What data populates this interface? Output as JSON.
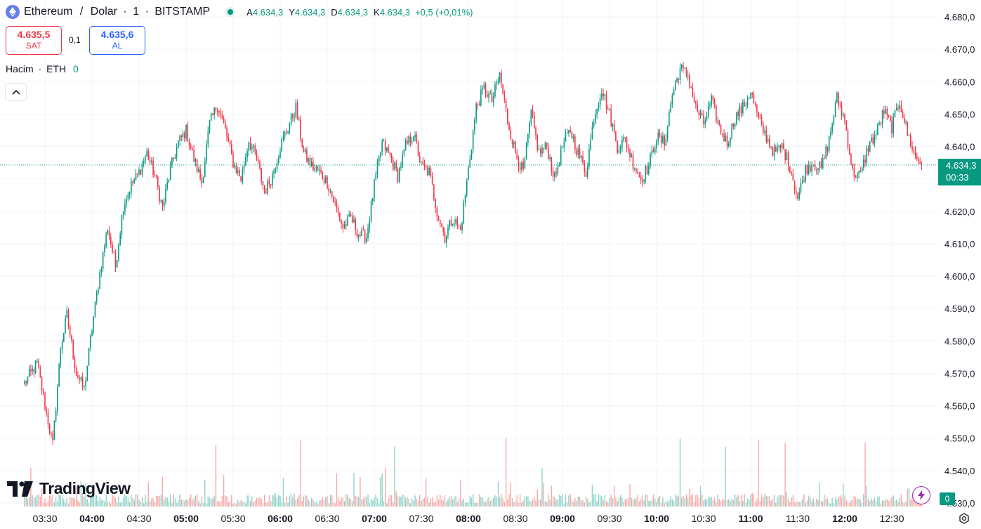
{
  "header": {
    "symbol_name": "Ethereum",
    "sep1": "/",
    "quote_name": "Dolar",
    "dot1": "·",
    "interval": "1",
    "dot2": "·",
    "exchange": "BITSTAMP",
    "ohlc": {
      "open_label": "A",
      "open": "4.634,3",
      "high_label": "Y",
      "high": "4.634,3",
      "low_label": "D",
      "low": "4.634,3",
      "close_label": "K",
      "close": "4.634,3",
      "change": "+0,5 (+0,01%)"
    }
  },
  "trade": {
    "sell_price": "4.635,5",
    "sell_label": "SAT",
    "spread": "0,1",
    "buy_price": "4.635,6",
    "buy_label": "AL"
  },
  "volume_legend": {
    "label": "Hacim",
    "dot": "·",
    "unit": "ETH",
    "value": "0"
  },
  "branding": {
    "logo_text": "TradingView"
  },
  "price_badge": {
    "price": "4.634,3",
    "countdown": "00:33"
  },
  "volume_badge": "0",
  "colors": {
    "up": "#089981",
    "down": "#f23645",
    "up_volume": "#8fd3c8",
    "down_volume": "#f7a9a7",
    "grid": "#f0f3fa",
    "axis_text": "#131722"
  },
  "icons": [
    "ethereum-icon",
    "market-open-icon",
    "chevron-up-icon",
    "tradingview-logo-icon",
    "lightning-icon",
    "settings-icon"
  ],
  "chart_data": {
    "type": "candlestick",
    "y_axis_labels": [
      "4.680,0",
      "4.670,0",
      "4.660,0",
      "4.650,0",
      "4.640,0",
      "4.630,0",
      "4.620,0",
      "4.610,0",
      "4.600,0",
      "4.590,0",
      "4.580,0",
      "4.570,0",
      "4.560,0",
      "4.550,0",
      "4.540,0",
      "4.530,0"
    ],
    "x_axis_labels": [
      {
        "t": "03:30",
        "bold": false
      },
      {
        "t": "04:00",
        "bold": true
      },
      {
        "t": "04:30",
        "bold": false
      },
      {
        "t": "05:00",
        "bold": true
      },
      {
        "t": "05:30",
        "bold": false
      },
      {
        "t": "06:00",
        "bold": true
      },
      {
        "t": "06:30",
        "bold": false
      },
      {
        "t": "07:00",
        "bold": true
      },
      {
        "t": "07:30",
        "bold": false
      },
      {
        "t": "08:00",
        "bold": true
      },
      {
        "t": "08:30",
        "bold": false
      },
      {
        "t": "09:00",
        "bold": true
      },
      {
        "t": "09:30",
        "bold": false
      },
      {
        "t": "10:00",
        "bold": true
      },
      {
        "t": "10:30",
        "bold": false
      },
      {
        "t": "11:00",
        "bold": true
      },
      {
        "t": "11:30",
        "bold": false
      },
      {
        "t": "12:00",
        "bold": true
      },
      {
        "t": "12:30",
        "bold": false
      }
    ],
    "ylim": [
      4530,
      4683
    ],
    "last_price": 4634.3,
    "start_time": "03:17",
    "end_time": "12:49",
    "close_anchors": [
      [
        "03:17",
        4567
      ],
      [
        "03:25",
        4573
      ],
      [
        "03:30",
        4560
      ],
      [
        "03:35",
        4548
      ],
      [
        "03:40",
        4578
      ],
      [
        "03:44",
        4588
      ],
      [
        "03:50",
        4570
      ],
      [
        "03:55",
        4565
      ],
      [
        "04:00",
        4584
      ],
      [
        "04:05",
        4601
      ],
      [
        "04:10",
        4615
      ],
      [
        "04:15",
        4603
      ],
      [
        "04:20",
        4622
      ],
      [
        "04:25",
        4628
      ],
      [
        "04:30",
        4632
      ],
      [
        "04:35",
        4638
      ],
      [
        "04:40",
        4631
      ],
      [
        "04:45",
        4621
      ],
      [
        "04:50",
        4633
      ],
      [
        "04:55",
        4641
      ],
      [
        "05:00",
        4645
      ],
      [
        "05:05",
        4636
      ],
      [
        "05:10",
        4629
      ],
      [
        "05:15",
        4647
      ],
      [
        "05:20",
        4653
      ],
      [
        "05:25",
        4645
      ],
      [
        "05:30",
        4635
      ],
      [
        "05:35",
        4630
      ],
      [
        "05:40",
        4642
      ],
      [
        "05:45",
        4636
      ],
      [
        "05:50",
        4626
      ],
      [
        "05:55",
        4631
      ],
      [
        "06:00",
        4640
      ],
      [
        "06:05",
        4646
      ],
      [
        "06:10",
        4652
      ],
      [
        "06:15",
        4638
      ],
      [
        "06:20",
        4634
      ],
      [
        "06:25",
        4632
      ],
      [
        "06:30",
        4629
      ],
      [
        "06:35",
        4622
      ],
      [
        "06:40",
        4615
      ],
      [
        "06:45",
        4618
      ],
      [
        "06:50",
        4613
      ],
      [
        "06:55",
        4612
      ],
      [
        "07:00",
        4628
      ],
      [
        "07:05",
        4641
      ],
      [
        "07:10",
        4637
      ],
      [
        "07:15",
        4631
      ],
      [
        "07:20",
        4640
      ],
      [
        "07:25",
        4644
      ],
      [
        "07:30",
        4634
      ],
      [
        "07:35",
        4632
      ],
      [
        "07:40",
        4620
      ],
      [
        "07:45",
        4612
      ],
      [
        "07:50",
        4618
      ],
      [
        "07:55",
        4614
      ],
      [
        "08:00",
        4633
      ],
      [
        "08:05",
        4652
      ],
      [
        "08:10",
        4658
      ],
      [
        "08:15",
        4654
      ],
      [
        "08:20",
        4662
      ],
      [
        "08:25",
        4648
      ],
      [
        "08:30",
        4638
      ],
      [
        "08:35",
        4632
      ],
      [
        "08:40",
        4650
      ],
      [
        "08:45",
        4638
      ],
      [
        "08:50",
        4640
      ],
      [
        "08:55",
        4630
      ],
      [
        "09:00",
        4640
      ],
      [
        "09:05",
        4645
      ],
      [
        "09:10",
        4638
      ],
      [
        "09:15",
        4632
      ],
      [
        "09:20",
        4649
      ],
      [
        "09:25",
        4658
      ],
      [
        "09:30",
        4650
      ],
      [
        "09:35",
        4640
      ],
      [
        "09:40",
        4642
      ],
      [
        "09:45",
        4635
      ],
      [
        "09:50",
        4630
      ],
      [
        "09:55",
        4634
      ],
      [
        "10:00",
        4643
      ],
      [
        "10:05",
        4641
      ],
      [
        "10:10",
        4656
      ],
      [
        "10:15",
        4664
      ],
      [
        "10:20",
        4662
      ],
      [
        "10:25",
        4652
      ],
      [
        "10:30",
        4647
      ],
      [
        "10:35",
        4654
      ],
      [
        "10:40",
        4646
      ],
      [
        "10:45",
        4641
      ],
      [
        "10:50",
        4649
      ],
      [
        "10:55",
        4652
      ],
      [
        "11:00",
        4657
      ],
      [
        "11:05",
        4648
      ],
      [
        "11:10",
        4643
      ],
      [
        "11:15",
        4638
      ],
      [
        "11:20",
        4640
      ],
      [
        "11:25",
        4634
      ],
      [
        "11:30",
        4624
      ],
      [
        "11:35",
        4633
      ],
      [
        "11:40",
        4635
      ],
      [
        "11:45",
        4633
      ],
      [
        "11:50",
        4642
      ],
      [
        "11:55",
        4655
      ],
      [
        "12:00",
        4648
      ],
      [
        "12:05",
        4632
      ],
      [
        "12:10",
        4631
      ],
      [
        "12:15",
        4640
      ],
      [
        "12:20",
        4644
      ],
      [
        "12:25",
        4651
      ],
      [
        "12:30",
        4646
      ],
      [
        "12:35",
        4654
      ],
      [
        "12:40",
        4644
      ],
      [
        "12:45",
        4637
      ],
      [
        "12:49",
        4634.3
      ]
    ]
  }
}
